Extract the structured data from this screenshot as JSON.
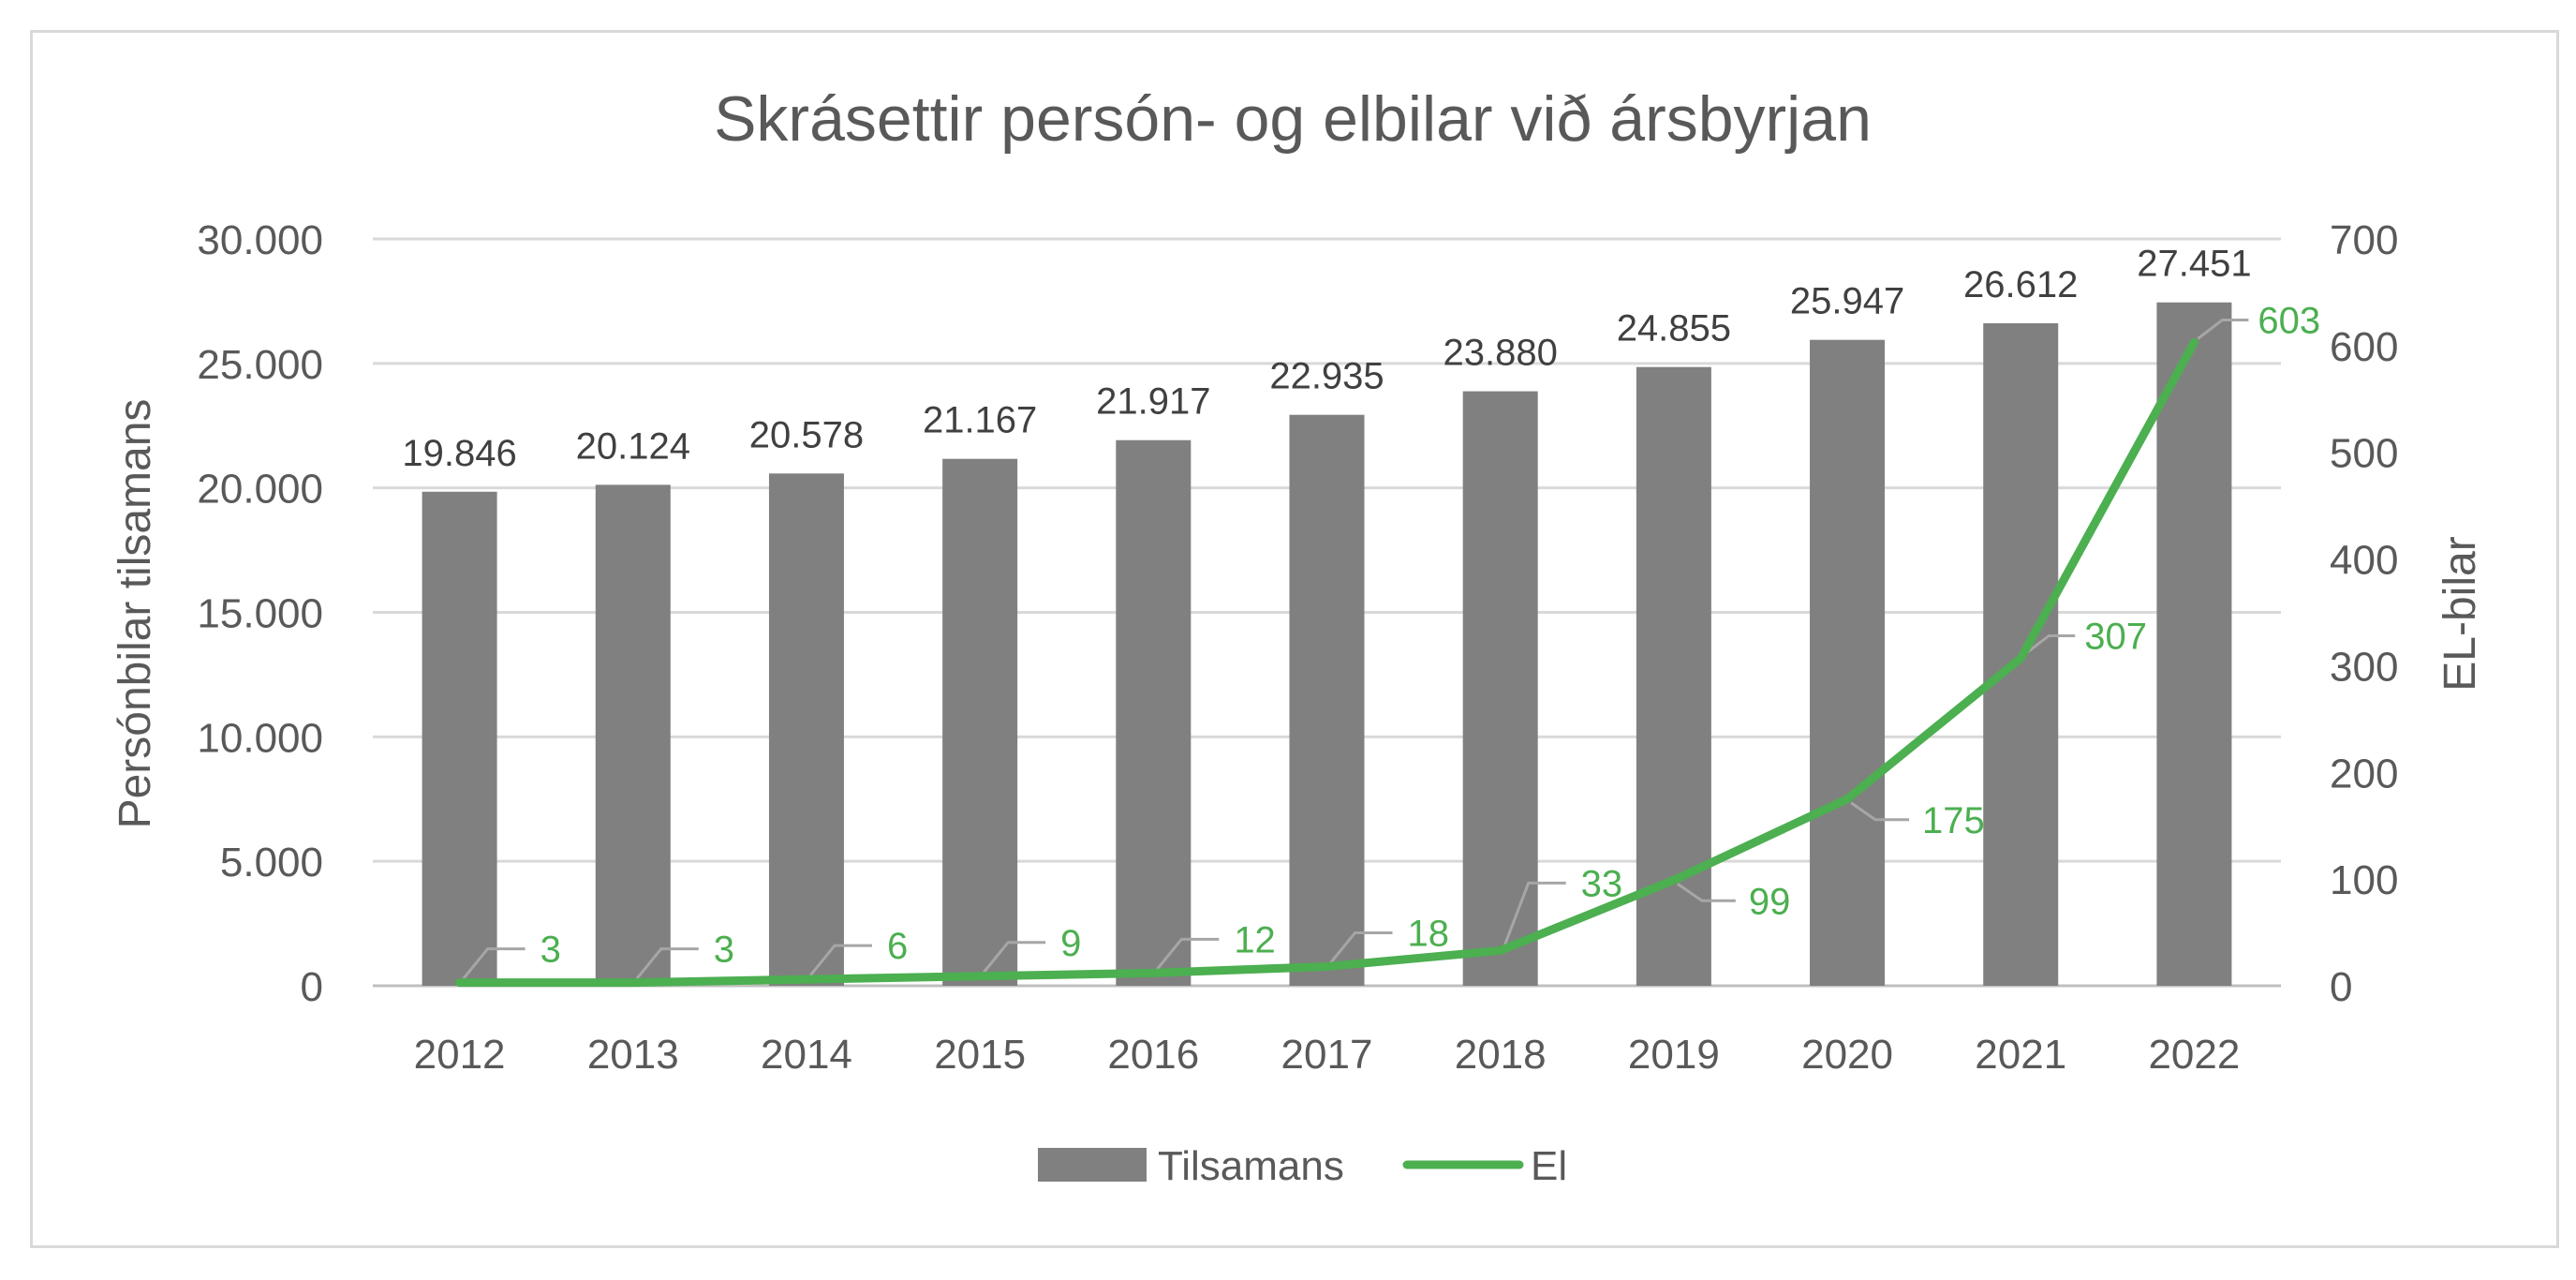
{
  "chart_data": {
    "type": "bar",
    "title": "Skrásettir persón- og elbilar við ársbyrjan",
    "categories": [
      "2012",
      "2013",
      "2014",
      "2015",
      "2016",
      "2017",
      "2018",
      "2019",
      "2020",
      "2021",
      "2022"
    ],
    "series": [
      {
        "name": "Tilsamans",
        "type": "bar",
        "axis": "left",
        "color": "#808080",
        "values": [
          19846,
          20124,
          20578,
          21167,
          21917,
          22935,
          23880,
          24855,
          25947,
          26612,
          27451
        ],
        "labels": [
          "19.846",
          "20.124",
          "20.578",
          "21.167",
          "21.917",
          "22.935",
          "23.880",
          "24.855",
          "25.947",
          "26.612",
          "27.451"
        ]
      },
      {
        "name": "El",
        "type": "line",
        "axis": "right",
        "color": "#4caf50",
        "values": [
          3,
          3,
          6,
          9,
          12,
          18,
          33,
          99,
          175,
          307,
          603
        ],
        "labels": [
          "3",
          "3",
          "6",
          "9",
          "12",
          "18",
          "33",
          "99",
          "175",
          "307",
          "603"
        ]
      }
    ],
    "y_left": {
      "label": "Persónbilar tilsamans",
      "range": [
        0,
        30000
      ],
      "ticks": [
        "0",
        "5.000",
        "10.000",
        "15.000",
        "20.000",
        "25.000",
        "30.000"
      ]
    },
    "y_right": {
      "label": "EL-bilar",
      "range": [
        0,
        700
      ],
      "ticks": [
        "0",
        "100",
        "200",
        "300",
        "400",
        "500",
        "600",
        "700"
      ]
    },
    "grid": true,
    "legend_position": "bottom"
  }
}
